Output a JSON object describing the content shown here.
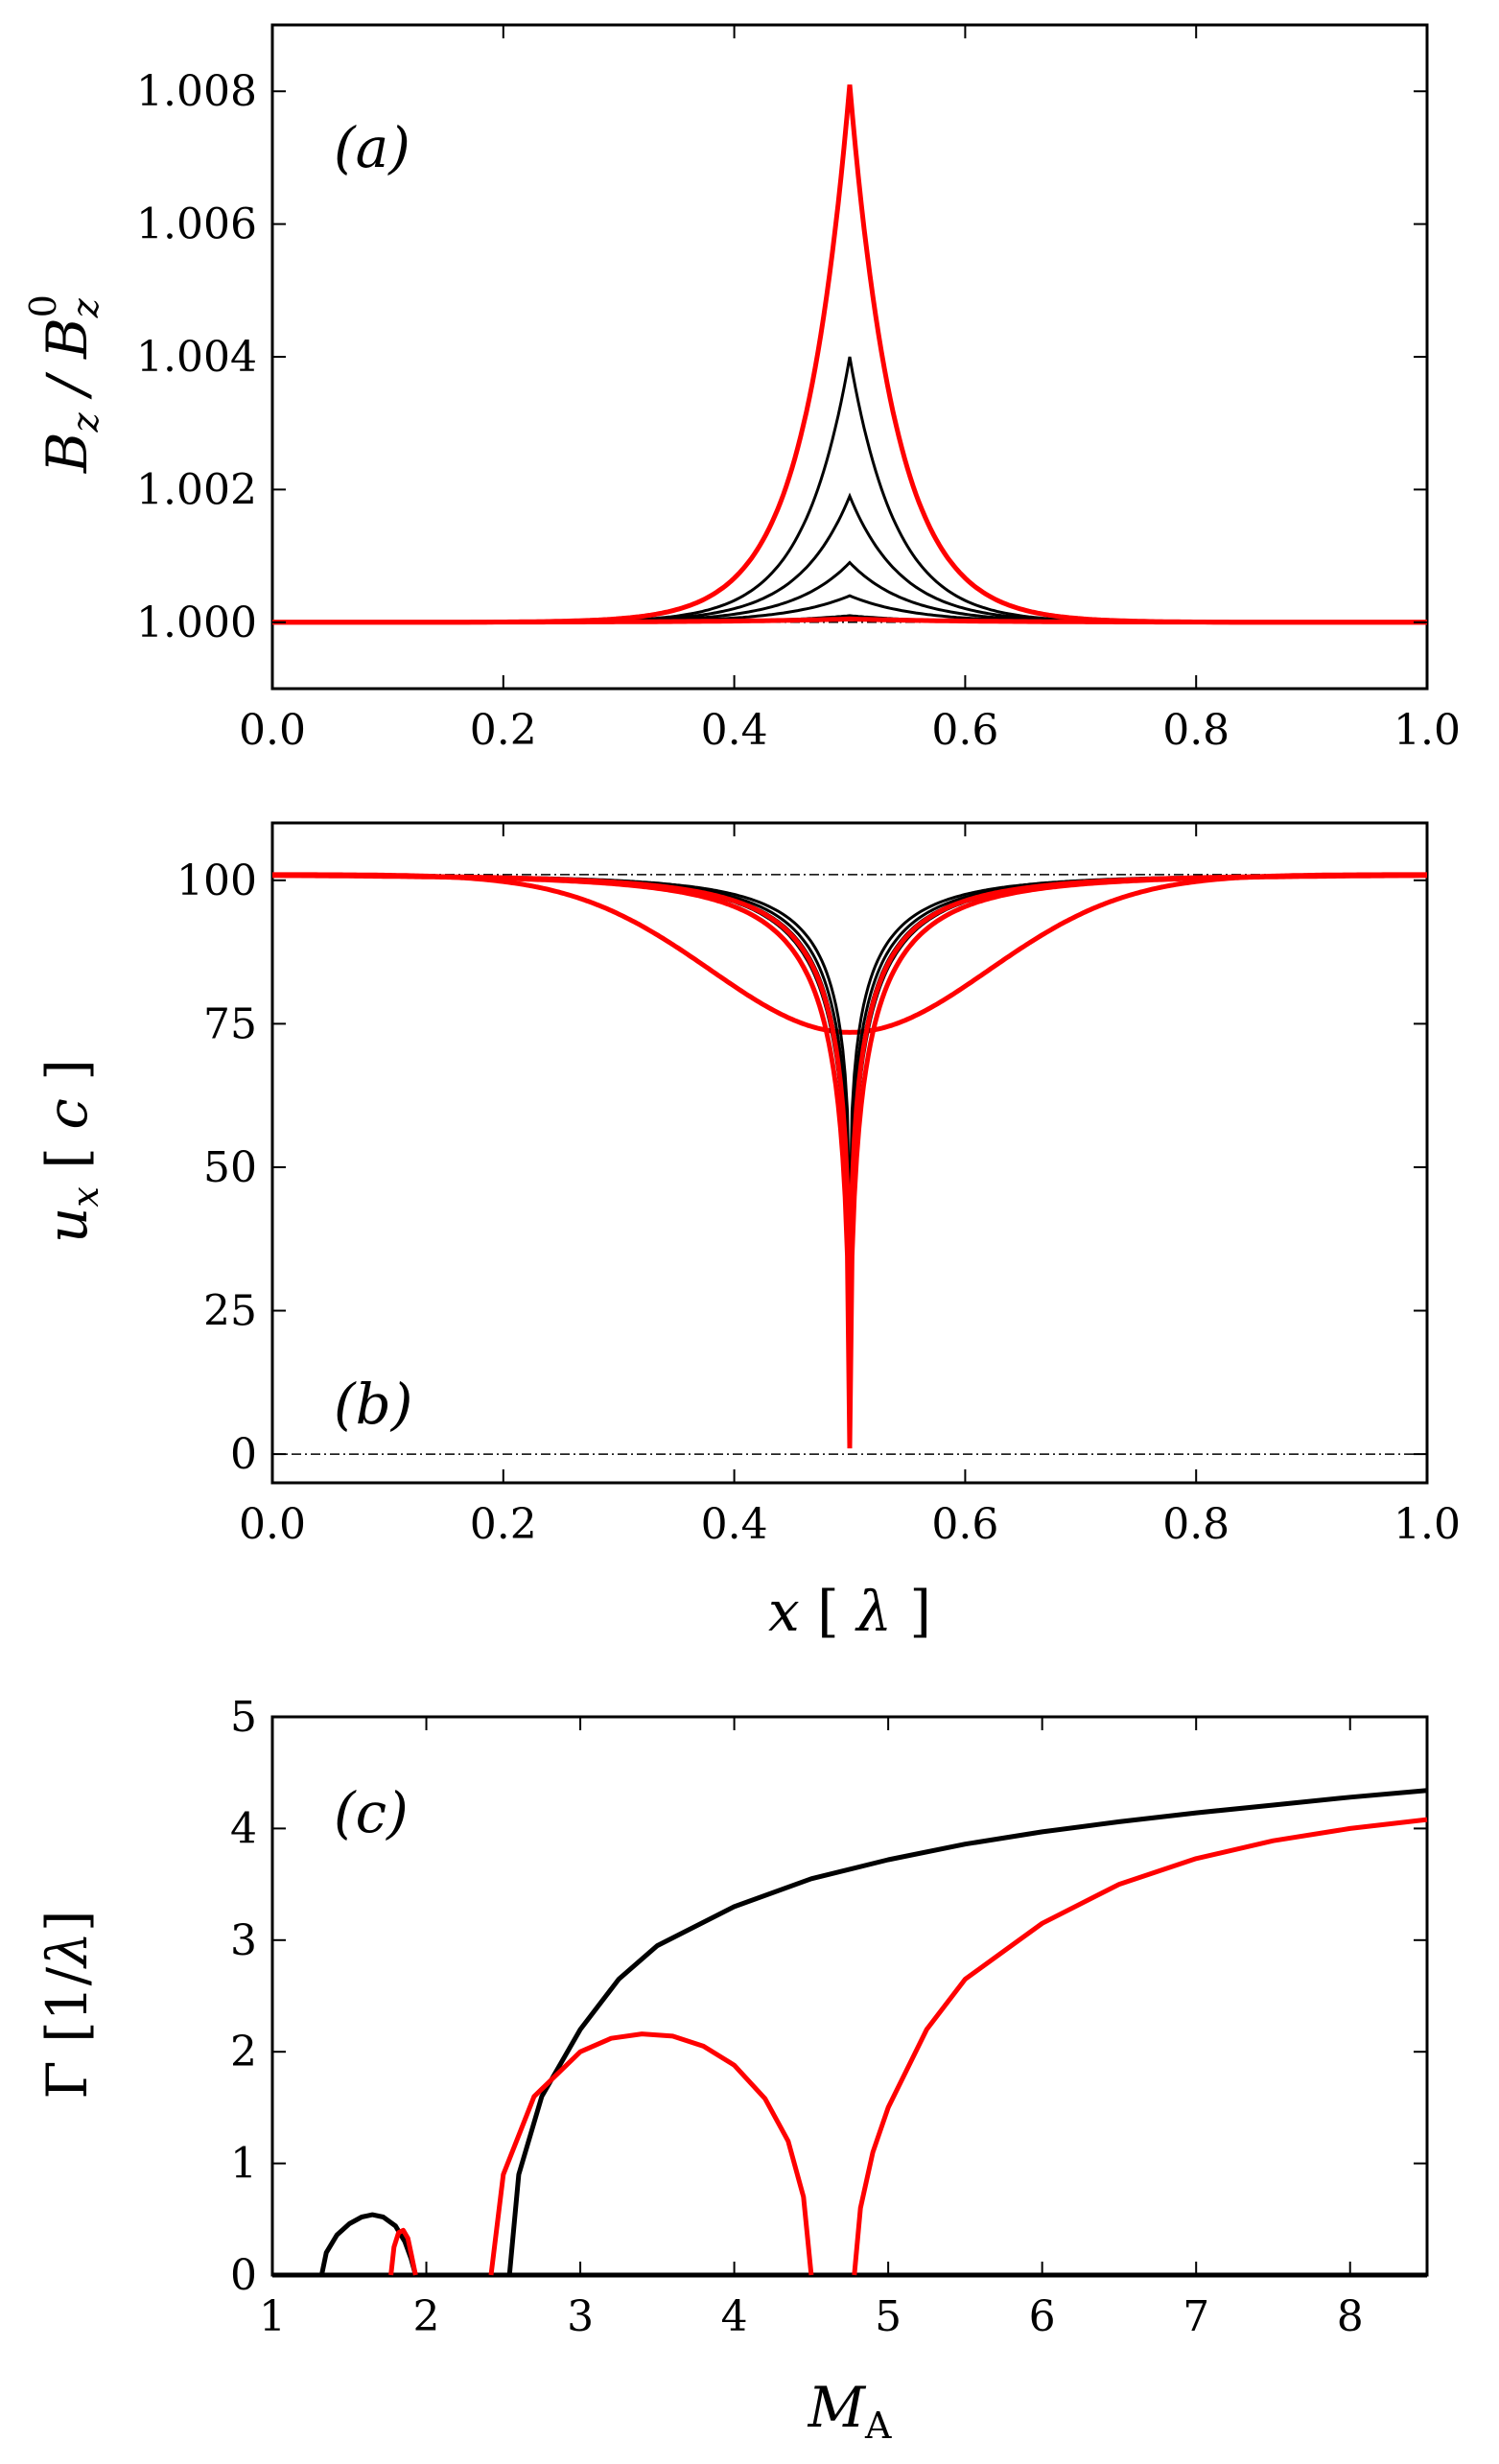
{
  "chart_data": [
    {
      "type": "line",
      "panel_label": "(a)",
      "ylabel": "B_z / B_z^0",
      "xlabel": "",
      "xlim": [
        0.0,
        1.0
      ],
      "ylim": [
        0.999,
        1.009
      ],
      "xticks": [
        0.0,
        0.2,
        0.4,
        0.6,
        0.8,
        1.0
      ],
      "xtick_labels": [
        "0.0",
        "0.2",
        "0.4",
        "0.6",
        "0.8",
        "1.0"
      ],
      "yticks": [
        1.0,
        1.002,
        1.004,
        1.006,
        1.008
      ],
      "ytick_labels": [
        "1.000",
        "1.002",
        "1.004",
        "1.006",
        "1.008"
      ],
      "series": [
        {
          "color": "#000000",
          "peak": 1.0001,
          "width": 0.06
        },
        {
          "color": "#000000",
          "peak": 1.0004,
          "width": 0.055
        },
        {
          "color": "#000000",
          "peak": 1.0009,
          "width": 0.05
        },
        {
          "color": "#000000",
          "peak": 1.0019,
          "width": 0.045
        },
        {
          "color": "#000000",
          "peak": 1.004,
          "width": 0.04
        },
        {
          "color": "#ff0000",
          "peak": 1.0081,
          "width": 0.04
        },
        {
          "color": "#ff0000",
          "peak": 1.00005,
          "width": 0.1
        }
      ],
      "reference_lines": [
        1.0
      ],
      "grid": false
    },
    {
      "type": "line",
      "panel_label": "(b)",
      "ylabel": "u_x [ c ]",
      "xlabel": "x [ λ ]",
      "xlim": [
        0.0,
        1.0
      ],
      "ylim": [
        -5,
        110
      ],
      "xticks": [
        0.0,
        0.2,
        0.4,
        0.6,
        0.8,
        1.0
      ],
      "xtick_labels": [
        "0.0",
        "0.2",
        "0.4",
        "0.6",
        "0.8",
        "1.0"
      ],
      "yticks": [
        0,
        25,
        50,
        75,
        100
      ],
      "ytick_labels": [
        "0",
        "25",
        "50",
        "75",
        "100"
      ],
      "series": [
        {
          "color": "#ff0000",
          "min": 73.5,
          "shape": "broad"
        },
        {
          "color": "#000000",
          "min": 39,
          "shape": "cusp"
        },
        {
          "color": "#000000",
          "min": 30,
          "shape": "cusp"
        },
        {
          "color": "#000000",
          "min": 22,
          "shape": "cusp"
        },
        {
          "color": "#000000",
          "min": 15,
          "shape": "cusp"
        },
        {
          "color": "#ff0000",
          "min": 19,
          "shape": "cusp"
        },
        {
          "color": "#ff0000",
          "min": 1,
          "shape": "cusp"
        }
      ],
      "reference_lines": [
        101,
        0
      ],
      "grid": false
    },
    {
      "type": "line",
      "panel_label": "(c)",
      "ylabel": "Γ [1/λ]",
      "xlabel": "M_A",
      "xlim": [
        1,
        8.5
      ],
      "ylim": [
        0,
        5
      ],
      "xticks": [
        1,
        2,
        3,
        4,
        5,
        6,
        7,
        8
      ],
      "xtick_labels": [
        "1",
        "2",
        "3",
        "4",
        "5",
        "6",
        "7",
        "8"
      ],
      "yticks": [
        0,
        1,
        2,
        3,
        4,
        5
      ],
      "ytick_labels": [
        "0",
        "1",
        "2",
        "3",
        "4",
        "5"
      ],
      "series": [
        {
          "color": "#000000",
          "x": [
            1.32,
            1.35,
            1.42,
            1.5,
            1.58,
            1.65,
            1.72,
            1.8,
            1.86,
            1.9,
            1.93
          ],
          "y": [
            0,
            0.2,
            0.36,
            0.46,
            0.52,
            0.54,
            0.52,
            0.44,
            0.3,
            0.15,
            0
          ]
        },
        {
          "color": "#000000",
          "x": [
            2.54,
            2.6,
            2.75,
            3.0,
            3.25,
            3.5,
            4.0,
            4.5,
            5.0,
            5.5,
            6.0,
            6.5,
            7.0,
            7.5,
            8.0,
            8.5
          ],
          "y": [
            0,
            0.9,
            1.6,
            2.2,
            2.65,
            2.95,
            3.3,
            3.55,
            3.72,
            3.86,
            3.97,
            4.06,
            4.14,
            4.21,
            4.28,
            4.34
          ]
        },
        {
          "color": "#ff0000",
          "x": [
            1.77,
            1.79,
            1.82,
            1.85,
            1.88,
            1.9,
            1.93
          ],
          "y": [
            0,
            0.25,
            0.38,
            0.4,
            0.33,
            0.2,
            0
          ]
        },
        {
          "color": "#ff0000",
          "x": [
            2.42,
            2.5,
            2.7,
            3.0,
            3.2,
            3.4,
            3.6,
            3.8,
            4.0,
            4.2,
            4.35,
            4.45,
            4.5
          ],
          "y": [
            0,
            0.9,
            1.6,
            2.0,
            2.12,
            2.16,
            2.14,
            2.05,
            1.88,
            1.58,
            1.2,
            0.7,
            0
          ]
        },
        {
          "color": "#ff0000",
          "x": [
            4.78,
            4.82,
            4.9,
            5.0,
            5.25,
            5.5,
            6.0,
            6.5,
            7.0,
            7.5,
            8.0,
            8.5
          ],
          "y": [
            0,
            0.6,
            1.1,
            1.5,
            2.2,
            2.65,
            3.15,
            3.5,
            3.73,
            3.89,
            4.0,
            4.08
          ]
        }
      ],
      "reference_lines": [
        0
      ],
      "grid": false
    }
  ]
}
